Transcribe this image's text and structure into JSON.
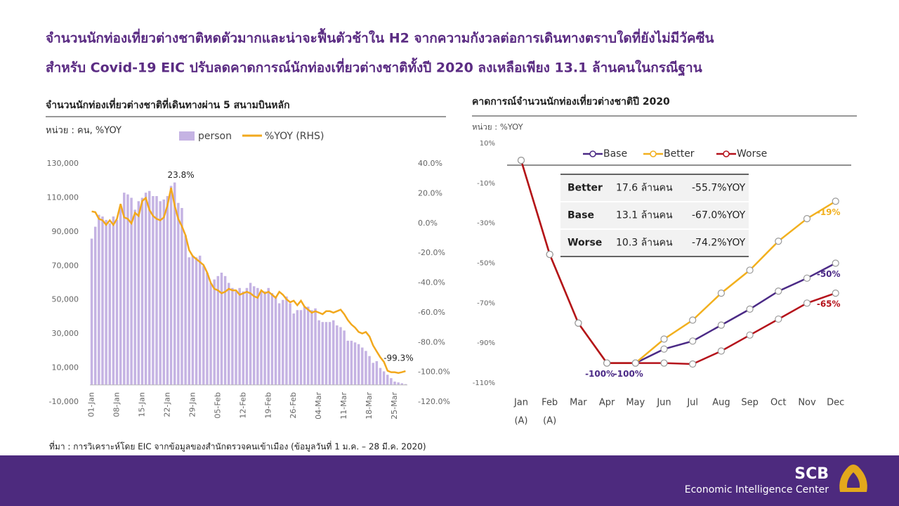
{
  "header": {
    "title": [
      "จำนวนนักท่องเที่ยวต่างชาติหดตัวมากและน่าจะฟื้นตัวช้าใน H2 จากความกังวลต่อการเดินทางตราบใดที่ยังไม่มีวัคซีน",
      "สำหรับ Covid-19  EIC ปรับลดคาดการณ์นักท่องเที่ยวต่างชาติทั้งปี 2020 ลงเหลือเพียง 13.1 ล้านคนในกรณีฐาน"
    ]
  },
  "chart_data": [
    {
      "type": "bar",
      "title": "จำนวนนักท่องเที่ยวต่างชาติที่เดินทางผ่าน  5 สนามบินหลัก",
      "unit_label": "หน่วย : คน, %YOY",
      "categories": [
        "01-Jan",
        null,
        null,
        null,
        null,
        null,
        null,
        "08-Jan",
        null,
        null,
        null,
        null,
        null,
        null,
        "15-Jan",
        null,
        null,
        null,
        null,
        null,
        null,
        "22-Jan",
        null,
        null,
        null,
        null,
        null,
        null,
        "29-Jan",
        null,
        null,
        null,
        null,
        null,
        null,
        "05-Feb",
        null,
        null,
        null,
        null,
        null,
        null,
        "12-Feb",
        null,
        null,
        null,
        null,
        null,
        null,
        "19-Feb",
        null,
        null,
        null,
        null,
        null,
        null,
        "26-Feb",
        null,
        null,
        null,
        null,
        null,
        null,
        "04-Mar",
        null,
        null,
        null,
        null,
        null,
        null,
        "11-Mar",
        null,
        null,
        null,
        null,
        null,
        null,
        "18-Mar",
        null,
        null,
        null,
        null,
        null,
        null,
        "25-Mar",
        null,
        null,
        null
      ],
      "series": [
        {
          "name": "person",
          "type": "bar",
          "color": "#c5b3e3",
          "values": [
            86000,
            93000,
            100000,
            99000,
            97000,
            95000,
            99000,
            97000,
            104000,
            113000,
            112000,
            110000,
            103000,
            108000,
            110000,
            113000,
            114000,
            111000,
            111000,
            108000,
            109000,
            111000,
            117000,
            119000,
            107000,
            104000,
            88000,
            75000,
            76000,
            75000,
            76000,
            70000,
            66000,
            60000,
            62000,
            64000,
            66000,
            64000,
            60000,
            57000,
            55000,
            57000,
            55000,
            57000,
            60000,
            58000,
            57000,
            55000,
            55000,
            57000,
            54000,
            52000,
            48000,
            50000,
            52000,
            48000,
            42000,
            44000,
            44000,
            46000,
            46000,
            44000,
            45000,
            38000,
            37000,
            37000,
            37000,
            38000,
            35000,
            34000,
            32000,
            26000,
            26000,
            25000,
            24000,
            22000,
            20000,
            17000,
            13000,
            14000,
            10000,
            8000,
            6000,
            4000,
            2000,
            1500,
            1000,
            500
          ]
        },
        {
          "name": "%YOY (RHS)",
          "type": "line",
          "axis": "y2",
          "color": "#f2a81d",
          "values": [
            8,
            7.5,
            3,
            2,
            -1,
            2,
            -1,
            3,
            13,
            4,
            3,
            0,
            7,
            5,
            15,
            17,
            9,
            5,
            3,
            2,
            4,
            12,
            23.8,
            12,
            3,
            -2,
            -8,
            -18,
            -22,
            -24,
            -26,
            -28,
            -33,
            -40,
            -44,
            -45,
            -47,
            -46,
            -44,
            -45,
            -45,
            -48,
            -47,
            -46,
            -47,
            -49,
            -50,
            -45,
            -47,
            -46,
            -48,
            -50,
            -46,
            -48,
            -51,
            -53,
            -52,
            -55,
            -52,
            -56,
            -58,
            -60,
            -59,
            -60,
            -61,
            -59,
            -59,
            -60,
            -59,
            -58,
            -61,
            -65,
            -68,
            -70,
            -73,
            -74,
            -73,
            -76,
            -82,
            -86,
            -90,
            -93,
            -99,
            -100,
            -100,
            -100.5,
            -100,
            -99.3
          ],
          "value_labels": [
            null,
            null,
            null,
            null,
            null,
            null,
            null,
            null,
            null,
            null,
            null,
            null,
            null,
            null,
            null,
            null,
            null,
            null,
            null,
            null,
            null,
            null,
            "23.8%",
            null,
            null,
            null,
            null,
            null,
            null,
            null,
            null,
            null,
            null,
            null,
            null,
            null,
            null,
            null,
            null,
            null,
            null,
            null,
            null,
            null,
            null,
            null,
            null,
            null,
            null,
            null,
            null,
            null,
            null,
            null,
            null,
            null,
            null,
            null,
            null,
            null,
            null,
            null,
            null,
            null,
            null,
            null,
            null,
            null,
            null,
            null,
            null,
            null,
            null,
            null,
            null,
            null,
            null,
            null,
            null,
            null,
            null,
            null,
            null,
            null,
            null,
            null,
            null,
            "-99.3%"
          ]
        }
      ],
      "ylim": [
        -10000,
        130000
      ],
      "yticks": [
        {
          "value": 130000,
          "label": "130,000"
        },
        {
          "value": 110000,
          "label": "110,000"
        },
        {
          "value": 90000,
          "label": "90,000"
        },
        {
          "value": 70000,
          "label": "70,000"
        },
        {
          "value": 50000,
          "label": "50,000"
        },
        {
          "value": 30000,
          "label": "30,000"
        },
        {
          "value": 10000,
          "label": "10,000"
        },
        {
          "value": -10000,
          "label": "-10,000"
        }
      ],
      "y2lim": [
        -120,
        40
      ],
      "y2ticks": [
        {
          "value": 40,
          "label": "40.0%"
        },
        {
          "value": 20,
          "label": "20.0%"
        },
        {
          "value": 0,
          "label": "0.0%"
        },
        {
          "value": -20,
          "label": "-20.0%"
        },
        {
          "value": -40,
          "label": "-40.0%"
        },
        {
          "value": -60,
          "label": "-60.0%"
        },
        {
          "value": -80,
          "label": "-80.0%"
        },
        {
          "value": -100,
          "label": "-100.0%"
        },
        {
          "value": -120,
          "label": "-120.0%"
        }
      ],
      "legend": "top"
    },
    {
      "type": "line",
      "title": "คาดการณ์จำนวนนักท่องเที่ยวต่างชาติปี 2020",
      "unit_label": "หน่วย : %YOY",
      "categories": [
        "Jan",
        "Feb",
        "Mar",
        "Apr",
        "May",
        "Jun",
        "Jul",
        "Aug",
        "Sep",
        "Oct",
        "Nov",
        "Dec"
      ],
      "category_notes": [
        "(A)",
        "(A)",
        null,
        null,
        null,
        null,
        null,
        null,
        null,
        null,
        null,
        null
      ],
      "series": [
        {
          "name": "Base",
          "color": "#4b2a86",
          "values": [
            1.5,
            -45.6,
            -80,
            -100,
            -100,
            -93,
            -89,
            -81,
            -73,
            -64,
            -57.5,
            -50
          ],
          "value_labels": [
            null,
            null,
            null,
            "-100%",
            "-100%",
            null,
            null,
            null,
            null,
            null,
            null,
            "-50%"
          ]
        },
        {
          "name": "Better",
          "color": "#f2b01e",
          "values": [
            1.5,
            -45.6,
            -80,
            -100,
            -100,
            -88,
            -78.5,
            -65,
            -53.5,
            -39,
            -27.7,
            -19
          ],
          "value_labels": [
            null,
            null,
            null,
            null,
            null,
            null,
            null,
            null,
            null,
            null,
            null,
            "-19%"
          ]
        },
        {
          "name": "Worse",
          "color": "#b5121b",
          "values": [
            1.5,
            -45.6,
            -80,
            -100,
            -100,
            -100,
            -100.5,
            -94,
            -86,
            -78,
            -70,
            -65
          ],
          "value_labels": [
            null,
            null,
            null,
            null,
            null,
            null,
            null,
            null,
            null,
            null,
            null,
            "-65%"
          ]
        }
      ],
      "ylim": [
        -110,
        10
      ],
      "yticks": [
        {
          "value": 10,
          "label": "10%"
        },
        {
          "value": -10,
          "label": "-10%"
        },
        {
          "value": -30,
          "label": "-30%"
        },
        {
          "value": -50,
          "label": "-50%"
        },
        {
          "value": -70,
          "label": "-70%"
        },
        {
          "value": -90,
          "label": "-90%"
        },
        {
          "value": -110,
          "label": "-110%"
        }
      ],
      "legend": "top",
      "table": {
        "rows": [
          [
            "Better",
            "17.6 ล้านคน",
            "-55.7%YOY"
          ],
          [
            "Base",
            "13.1 ล้านคน",
            "-67.0%YOY"
          ],
          [
            "Worse",
            "10.3 ล้านคน",
            "-74.2%YOY"
          ]
        ]
      }
    }
  ],
  "source": "ที่มา : การวิเคราะห์โดย EIC จากข้อมูลของสำนักตรวจคนเข้าเมือง (ข้อมูลวันที่ 1 ม.ค. – 28 มี.ค. 2020)",
  "footer": {
    "brand": "SCB",
    "unit": "Economic Intelligence Center"
  }
}
